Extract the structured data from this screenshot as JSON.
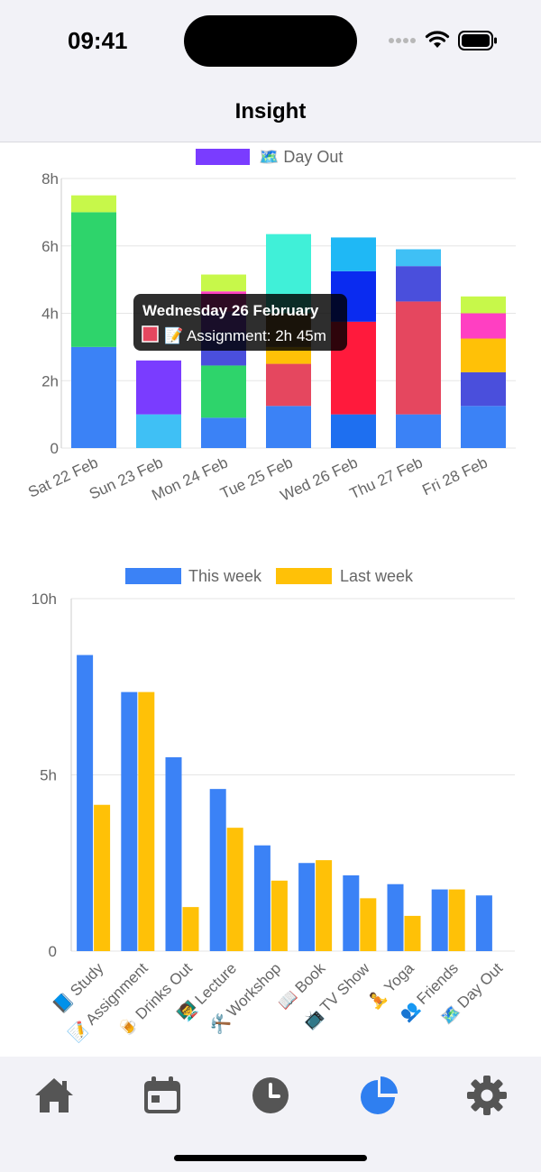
{
  "status": {
    "time": "09:41"
  },
  "header": {
    "title": "Insight"
  },
  "chart_data": [
    {
      "type": "bar",
      "stacked": true,
      "legend": {
        "position": "top",
        "visible_entries": [
          {
            "label": "🗺️ Day Out",
            "color": "#7a3cff"
          }
        ]
      },
      "y_ticks": [
        "0",
        "2h",
        "4h",
        "6h",
        "8h"
      ],
      "ylim": [
        0,
        8
      ],
      "categories": [
        "Sat 22 Feb",
        "Sun 23 Feb",
        "Mon 24 Feb",
        "Tue 25 Feb",
        "Wed 26 Feb",
        "Thu 27 Feb",
        "Fri 28 Feb"
      ],
      "segments": [
        [
          {
            "value": 3.0,
            "color": "#3b82f6"
          },
          {
            "value": 4.0,
            "color": "#2ed46b"
          },
          {
            "value": 0.5,
            "color": "#c7f84a"
          }
        ],
        [
          {
            "value": 1.0,
            "color": "#3fc0f5"
          },
          {
            "value": 1.6,
            "color": "#7a3cff"
          }
        ],
        [
          {
            "value": 0.9,
            "color": "#3b82f6"
          },
          {
            "value": 1.55,
            "color": "#2ed46b"
          },
          {
            "value": 1.0,
            "color": "#4a4fdc"
          },
          {
            "value": 0.6,
            "color": "#8a4de3"
          },
          {
            "value": 0.6,
            "color": "#ff3fc2"
          },
          {
            "value": 0.5,
            "color": "#c7f84a"
          }
        ],
        [
          {
            "value": 1.25,
            "color": "#3b82f6"
          },
          {
            "value": 1.25,
            "color": "#e5475f"
          },
          {
            "value": 0.5,
            "color": "#ffc107"
          },
          {
            "value": 1.0,
            "color": "#8a6a3a"
          },
          {
            "value": 2.35,
            "color": "#40f0d8"
          }
        ],
        [
          {
            "value": 1.0,
            "color": "#1e6ff0"
          },
          {
            "value": 2.75,
            "color": "#ff1a3c"
          },
          {
            "value": 1.5,
            "color": "#0a2bf0"
          },
          {
            "value": 1.0,
            "color": "#1fb8f5"
          }
        ],
        [
          {
            "value": 1.0,
            "color": "#3b82f6"
          },
          {
            "value": 3.35,
            "color": "#e5475f"
          },
          {
            "value": 1.05,
            "color": "#4a4fdc"
          },
          {
            "value": 0.5,
            "color": "#3fc0f5"
          }
        ],
        [
          {
            "value": 1.25,
            "color": "#3b82f6"
          },
          {
            "value": 1.0,
            "color": "#4a4fdc"
          },
          {
            "value": 1.0,
            "color": "#ffc107"
          },
          {
            "value": 0.75,
            "color": "#ff3fc2"
          },
          {
            "value": 0.5,
            "color": "#c7f84a"
          }
        ]
      ],
      "tooltip": {
        "title": "Wednesday 26 February",
        "label": "📝 Assignment: 2h 45m",
        "swatch_color": "#e5475f",
        "category_index": 4
      }
    },
    {
      "type": "bar",
      "legend": {
        "position": "top"
      },
      "y_ticks": [
        "0",
        "5h",
        "10h"
      ],
      "ylim": [
        0,
        10
      ],
      "categories": [
        "📘 Study",
        "📝 Assignment",
        "🍺 Drinks Out",
        "👨‍🏫 Lecture",
        "🛠️ Workshop",
        "📖 Book",
        "📺 TV Show",
        "🧘 Yoga",
        "👥 Friends",
        "🗺️ Day Out"
      ],
      "series": [
        {
          "name": "This week",
          "color": "#3b82f6",
          "values": [
            8.4,
            7.35,
            5.5,
            4.6,
            3.0,
            2.5,
            2.15,
            1.9,
            1.75,
            1.58
          ]
        },
        {
          "name": "Last week",
          "color": "#ffc107",
          "values": [
            4.15,
            7.35,
            1.25,
            3.5,
            2.0,
            2.58,
            1.5,
            1.0,
            1.75,
            null
          ]
        }
      ]
    }
  ],
  "tabs": [
    {
      "name": "home",
      "icon": "home-icon",
      "active": false
    },
    {
      "name": "calendar",
      "icon": "calendar-icon",
      "active": false
    },
    {
      "name": "history",
      "icon": "clock-icon",
      "active": false
    },
    {
      "name": "insight",
      "icon": "pie-chart-icon",
      "active": true
    },
    {
      "name": "settings",
      "icon": "gear-icon",
      "active": false
    }
  ],
  "colors": {
    "tab_active": "#2f7ff0",
    "tab_inactive": "#555555",
    "grid": "#e5e5e5",
    "axis_text": "#666666"
  }
}
